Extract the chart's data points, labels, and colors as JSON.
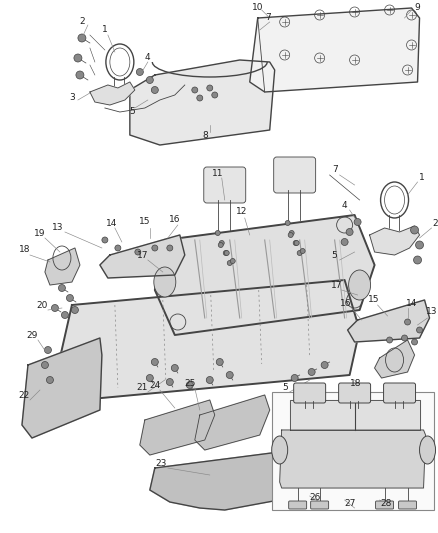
{
  "bg_color": "#ffffff",
  "fig_width": 4.39,
  "fig_height": 5.33,
  "dpi": 100,
  "line_color": "#444444",
  "light_gray": "#cccccc",
  "mid_gray": "#aaaaaa",
  "label_fontsize": 6.5,
  "label_color": "#222222"
}
